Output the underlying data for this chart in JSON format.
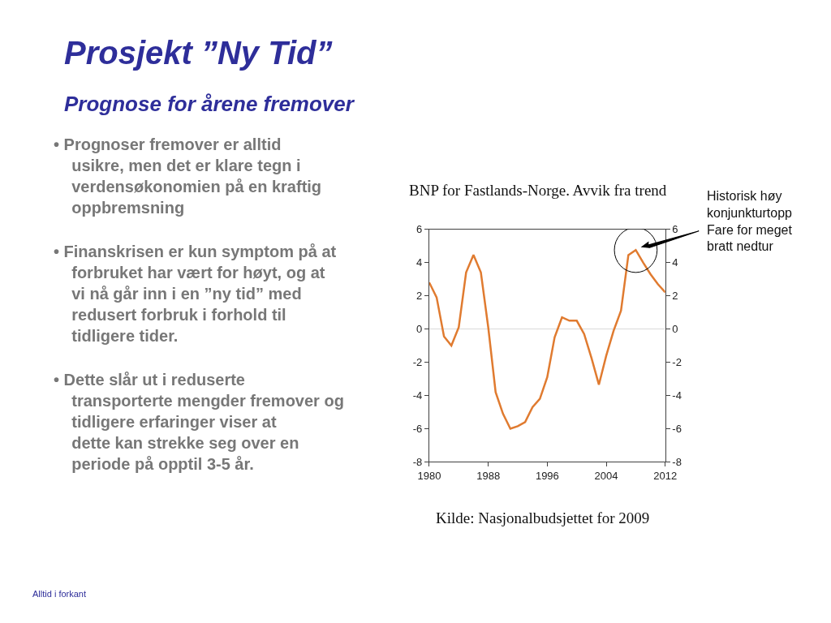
{
  "chart_data": {
    "type": "line",
    "title": "Prosjekt ”Ny Tid”",
    "subtitle": "Prognose for årene fremover",
    "annotations": [
      "BNP for Fastlands-Norge. Avvik fra trend",
      "• Prognoser fremover er alltid usikre, men det er klare tegn i verdensøkonomien på en kraftig oppbremsning",
      "• Finanskrisen er kun symptom på at forbruket har vært for høyt, og at vi nå går inn i en ”ny tid” med redusert forbruk i forhold til tidligere tider.",
      "• Dette slår ut i reduserte transporterte mengder fremover og tidligere erfaringer viser at dette kan strekke seg over en periode på opptil 3-5 år.",
      {
        "text": "Historisk høy konjunkturtopp Fare for meget bratt nedtur",
        "x": 2008,
        "y": 4.75
      },
      "Kilde: Nasjonalbudsjettet for 2009",
      "Alltid i forkant"
    ],
    "x": [
      1980,
      1981,
      1982,
      1983,
      1984,
      1985,
      1986,
      1987,
      1988,
      1989,
      1990,
      1991,
      1992,
      1993,
      1994,
      1995,
      1996,
      1997,
      1998,
      1999,
      2000,
      2001,
      2002,
      2003,
      2004,
      2005,
      2006,
      2007,
      2008,
      2009,
      2010,
      2011,
      2012
    ],
    "series": [
      {
        "color": "#e07b30",
        "values": [
          2.8,
          1.9,
          -0.45,
          -1.0,
          0.1,
          3.4,
          4.45,
          3.4,
          0.1,
          -3.8,
          -5.1,
          -6.0,
          -5.85,
          -5.6,
          -4.7,
          -4.2,
          -2.9,
          -0.5,
          0.7,
          0.5,
          0.5,
          -0.3,
          -1.75,
          -3.35,
          -1.6,
          -0.1,
          1.1,
          4.45,
          4.75,
          4.0,
          3.3,
          2.7,
          2.2
        ]
      }
    ],
    "xlim": [
      1980,
      2012
    ],
    "xticks": [
      1980,
      1988,
      1996,
      2004,
      2012
    ],
    "ylim": [
      -8,
      6
    ],
    "yticks": [
      -8,
      -6,
      -4,
      -2,
      0,
      2,
      4,
      6
    ],
    "y2lim": [
      -8,
      6
    ],
    "y2ticks": [
      -8,
      -6,
      -4,
      -2,
      0,
      2,
      4,
      6
    ],
    "ref_lines": [
      {
        "axis": "y",
        "value": 0,
        "color": "#d9d9d9"
      }
    ],
    "grid": false,
    "legend": false,
    "marker": "none",
    "line_style": "solid"
  }
}
